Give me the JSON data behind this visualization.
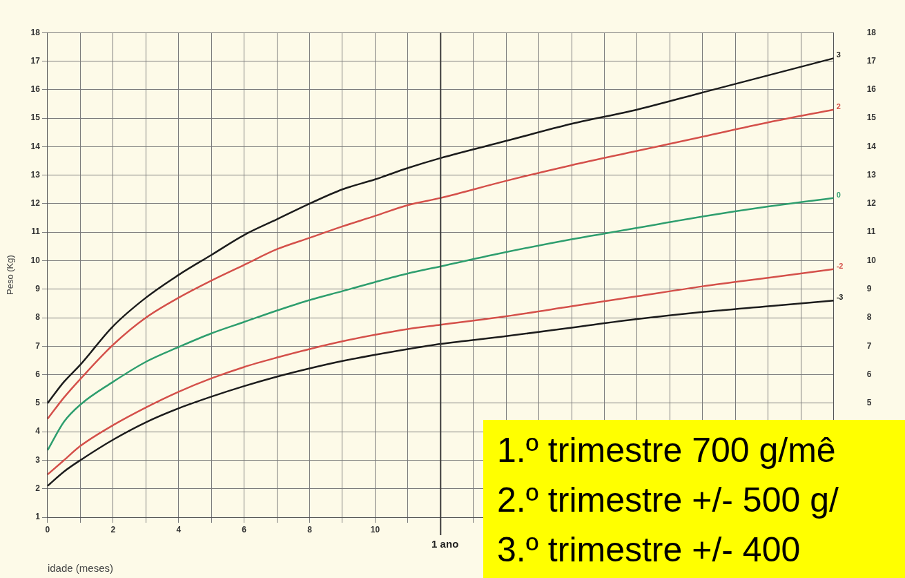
{
  "chart_data": {
    "type": "line",
    "xlabel": "idade (meses)",
    "ylabel": "Peso (Kg)",
    "x": [
      0,
      0.5,
      1,
      2,
      3,
      4,
      5,
      6,
      7,
      8,
      9,
      10,
      11,
      12,
      14,
      16,
      18,
      20,
      22,
      24
    ],
    "series": [
      {
        "name": "3",
        "color": "#1c1c1c",
        "values": [
          5.0,
          5.75,
          6.35,
          7.7,
          8.7,
          9.5,
          10.2,
          10.9,
          11.45,
          12.0,
          12.5,
          12.85,
          13.25,
          13.6,
          14.2,
          14.8,
          15.3,
          15.9,
          16.5,
          17.1
        ]
      },
      {
        "name": "2",
        "color": "#d4504a",
        "values": [
          4.45,
          5.2,
          5.85,
          7.05,
          8.0,
          8.7,
          9.3,
          9.85,
          10.4,
          10.8,
          11.2,
          11.57,
          11.95,
          12.2,
          12.8,
          13.35,
          13.85,
          14.35,
          14.85,
          15.3
        ]
      },
      {
        "name": "0",
        "color": "#2e9e6e",
        "values": [
          3.35,
          4.35,
          4.95,
          5.75,
          6.45,
          6.97,
          7.45,
          7.85,
          8.25,
          8.62,
          8.93,
          9.25,
          9.55,
          9.8,
          10.3,
          10.75,
          11.15,
          11.55,
          11.9,
          12.2
        ]
      },
      {
        "name": "-2",
        "color": "#d4504a",
        "values": [
          2.5,
          3.0,
          3.5,
          4.23,
          4.85,
          5.4,
          5.87,
          6.27,
          6.6,
          6.9,
          7.17,
          7.4,
          7.6,
          7.75,
          8.05,
          8.4,
          8.75,
          9.1,
          9.4,
          9.7
        ]
      },
      {
        "name": "-3",
        "color": "#1c1c1c",
        "values": [
          2.1,
          2.6,
          3.0,
          3.72,
          4.33,
          4.82,
          5.23,
          5.6,
          5.93,
          6.22,
          6.48,
          6.7,
          6.9,
          7.08,
          7.35,
          7.65,
          7.95,
          8.2,
          8.4,
          8.6
        ]
      }
    ],
    "xlim": [
      0,
      24
    ],
    "xticks": [
      0,
      {
        "value": 1,
        "label": null
      },
      2,
      {
        "value": 3,
        "label": null
      },
      4,
      {
        "value": 5,
        "label": null
      },
      6,
      {
        "value": 7,
        "label": null
      },
      8,
      {
        "value": 9,
        "label": null
      },
      10,
      {
        "value": 11,
        "label": null
      },
      {
        "value": 12,
        "label": null
      },
      {
        "value": 13,
        "label": null
      },
      {
        "value": 14,
        "label": null
      },
      {
        "value": 15,
        "label": null
      },
      {
        "value": 16,
        "label": null
      },
      {
        "value": 17,
        "label": null
      },
      {
        "value": 18,
        "label": null
      },
      {
        "value": 19,
        "label": null
      },
      {
        "value": 20,
        "label": null
      },
      {
        "value": 21,
        "label": null
      },
      {
        "value": 22,
        "label": null
      },
      {
        "value": 23,
        "label": null
      },
      {
        "value": 24,
        "label": null
      }
    ],
    "ylim": [
      1,
      18
    ],
    "yticks": [
      1,
      2,
      3,
      4,
      5,
      6,
      7,
      8,
      9,
      10,
      11,
      12,
      13,
      14,
      15,
      16,
      17,
      18
    ],
    "y2lim": [
      1,
      18
    ],
    "y2ticks": [
      5,
      6,
      7,
      8,
      9,
      10,
      11,
      12,
      13,
      14,
      15,
      16,
      17,
      18
    ],
    "ref_lines": [
      {
        "axis": "x",
        "value": 12,
        "label": "1 ano",
        "color": "#3a3a3a"
      }
    ],
    "grid": true,
    "legend": false,
    "marker": "none",
    "line_style": "solid",
    "annotations": [
      "1.º trimestre 700 g/mê",
      "2.º trimestre +/- 500 g/",
      "3.º trimestre +/- 400"
    ]
  }
}
